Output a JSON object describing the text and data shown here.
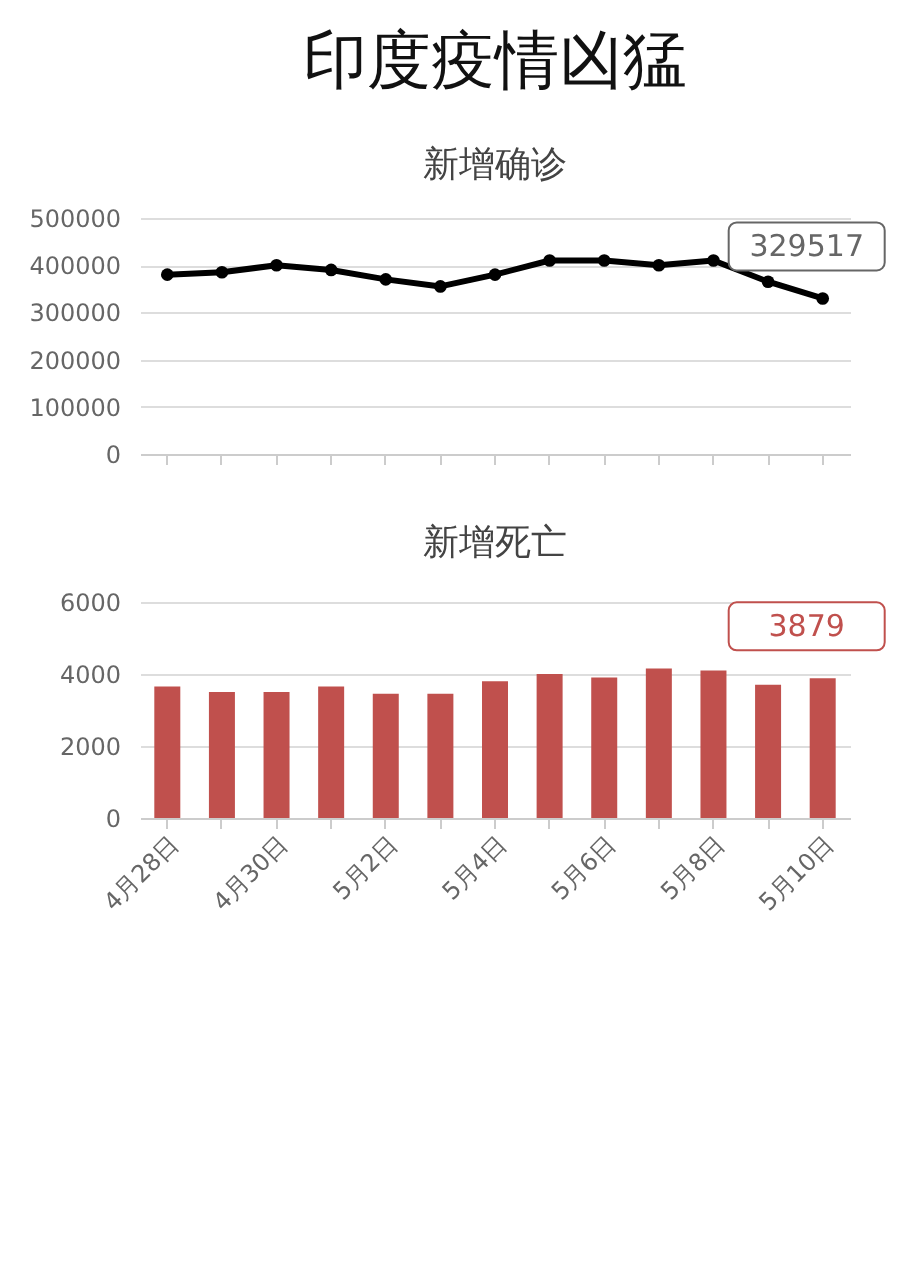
{
  "chart_data": [
    {
      "type": "line",
      "title": "印度疫情凶猛",
      "subtitle": "新增确诊",
      "categories": [
        "4月28日",
        null,
        "4月30日",
        null,
        "5月2日",
        null,
        "5月4日",
        null,
        "5月6日",
        null,
        "5月8日",
        null,
        "5月10日"
      ],
      "series": [
        {
          "color": "#000000",
          "values": [
            380000,
            385000,
            400000,
            390000,
            370000,
            355000,
            380000,
            410000,
            410000,
            400000,
            410000,
            365000,
            329517
          ]
        }
      ],
      "ylim": [
        0,
        500000
      ],
      "yticks": [
        0,
        100000,
        200000,
        300000,
        400000,
        500000
      ],
      "grid": "y",
      "marker": "circle",
      "tick_labels": "y",
      "annotations": [
        {
          "text": "329517",
          "x": "5月10日",
          "y": 329517
        }
      ]
    },
    {
      "type": "bar",
      "title": "新增死亡",
      "categories": [
        "4月28日",
        null,
        "4月30日",
        null,
        "5月2日",
        null,
        "5月4日",
        null,
        "5月6日",
        null,
        "5月8日",
        null,
        "5月10日"
      ],
      "series": [
        {
          "color": "#c0504d",
          "values": [
            3650,
            3500,
            3500,
            3650,
            3450,
            3450,
            3800,
            4000,
            3900,
            4150,
            4100,
            3700,
            3879
          ]
        }
      ],
      "ylim": [
        0,
        6000
      ],
      "yticks": [
        0,
        2000,
        4000,
        6000
      ],
      "grid": "y",
      "annotations": [
        {
          "text": "3879",
          "x": "5月10日",
          "y": 3879
        }
      ]
    }
  ]
}
